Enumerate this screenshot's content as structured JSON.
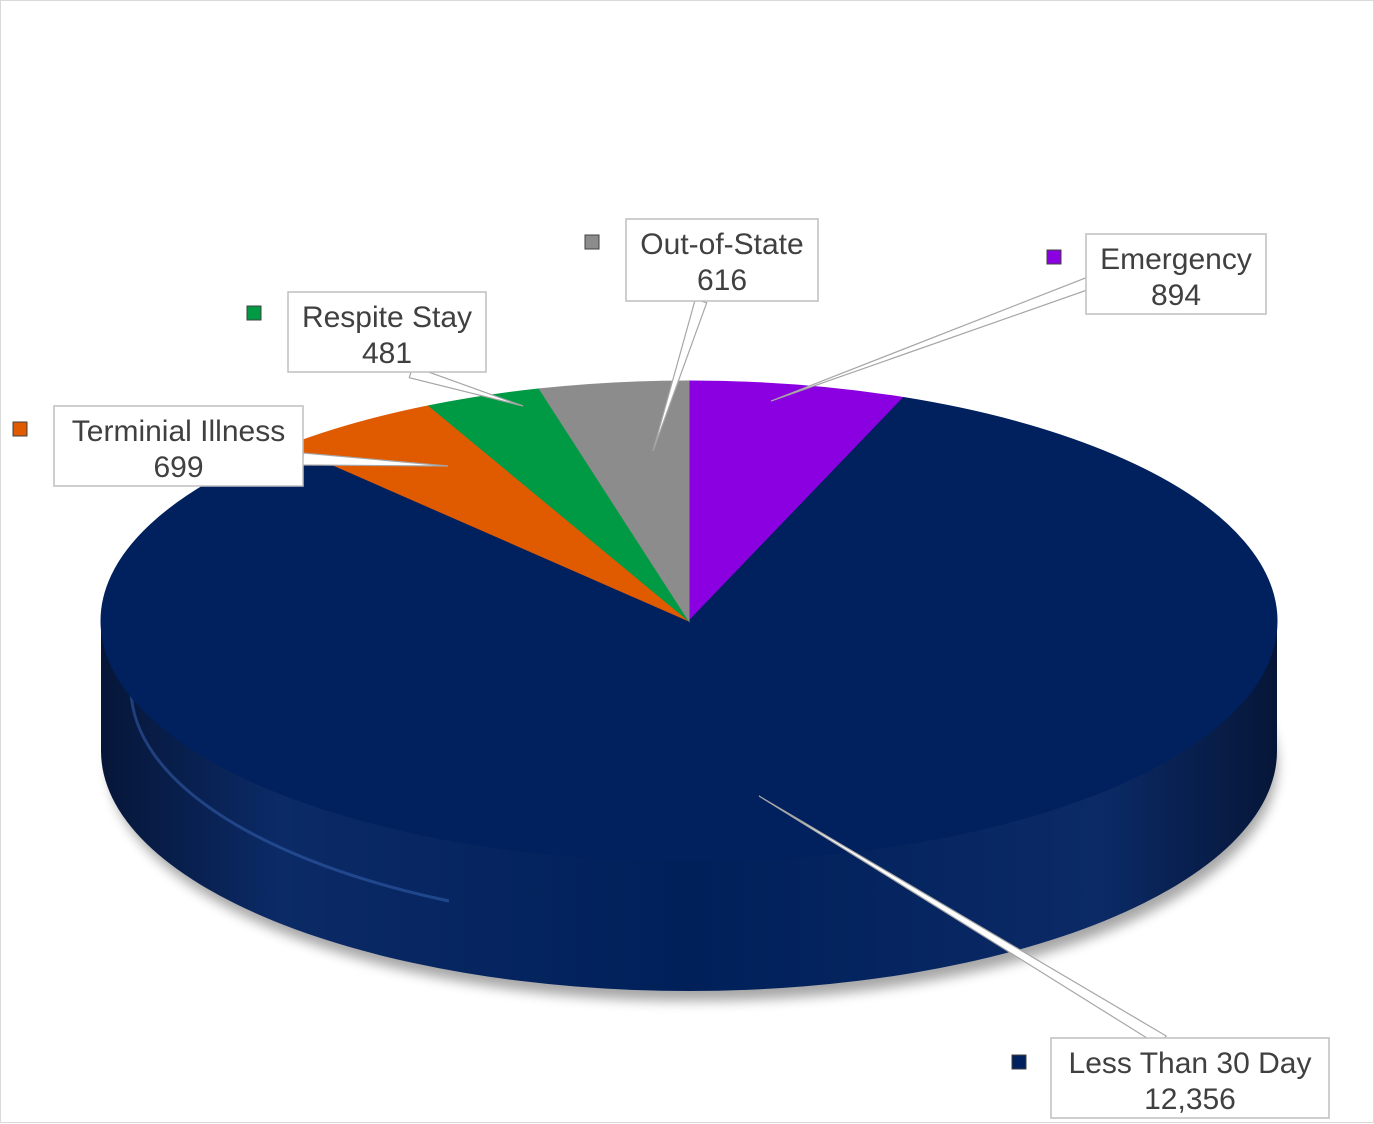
{
  "chart_data": {
    "type": "pie",
    "style": "3d",
    "title": "",
    "legend": "callout-labels",
    "slices": [
      {
        "label": "Emergency",
        "value": 894,
        "value_text": "894",
        "color": "#8b00e0"
      },
      {
        "label": "Less Than 30 Day",
        "value": 12356,
        "value_text": "12,356",
        "color": "#00215e"
      },
      {
        "label": "Terminial Illness",
        "value": 699,
        "value_text": "699",
        "color": "#e05a00"
      },
      {
        "label": "Respite Stay",
        "value": 481,
        "value_text": "481",
        "color": "#009a44"
      },
      {
        "label": "Out-of-State",
        "value": 616,
        "value_text": "616",
        "color": "#8c8c8c"
      }
    ]
  }
}
